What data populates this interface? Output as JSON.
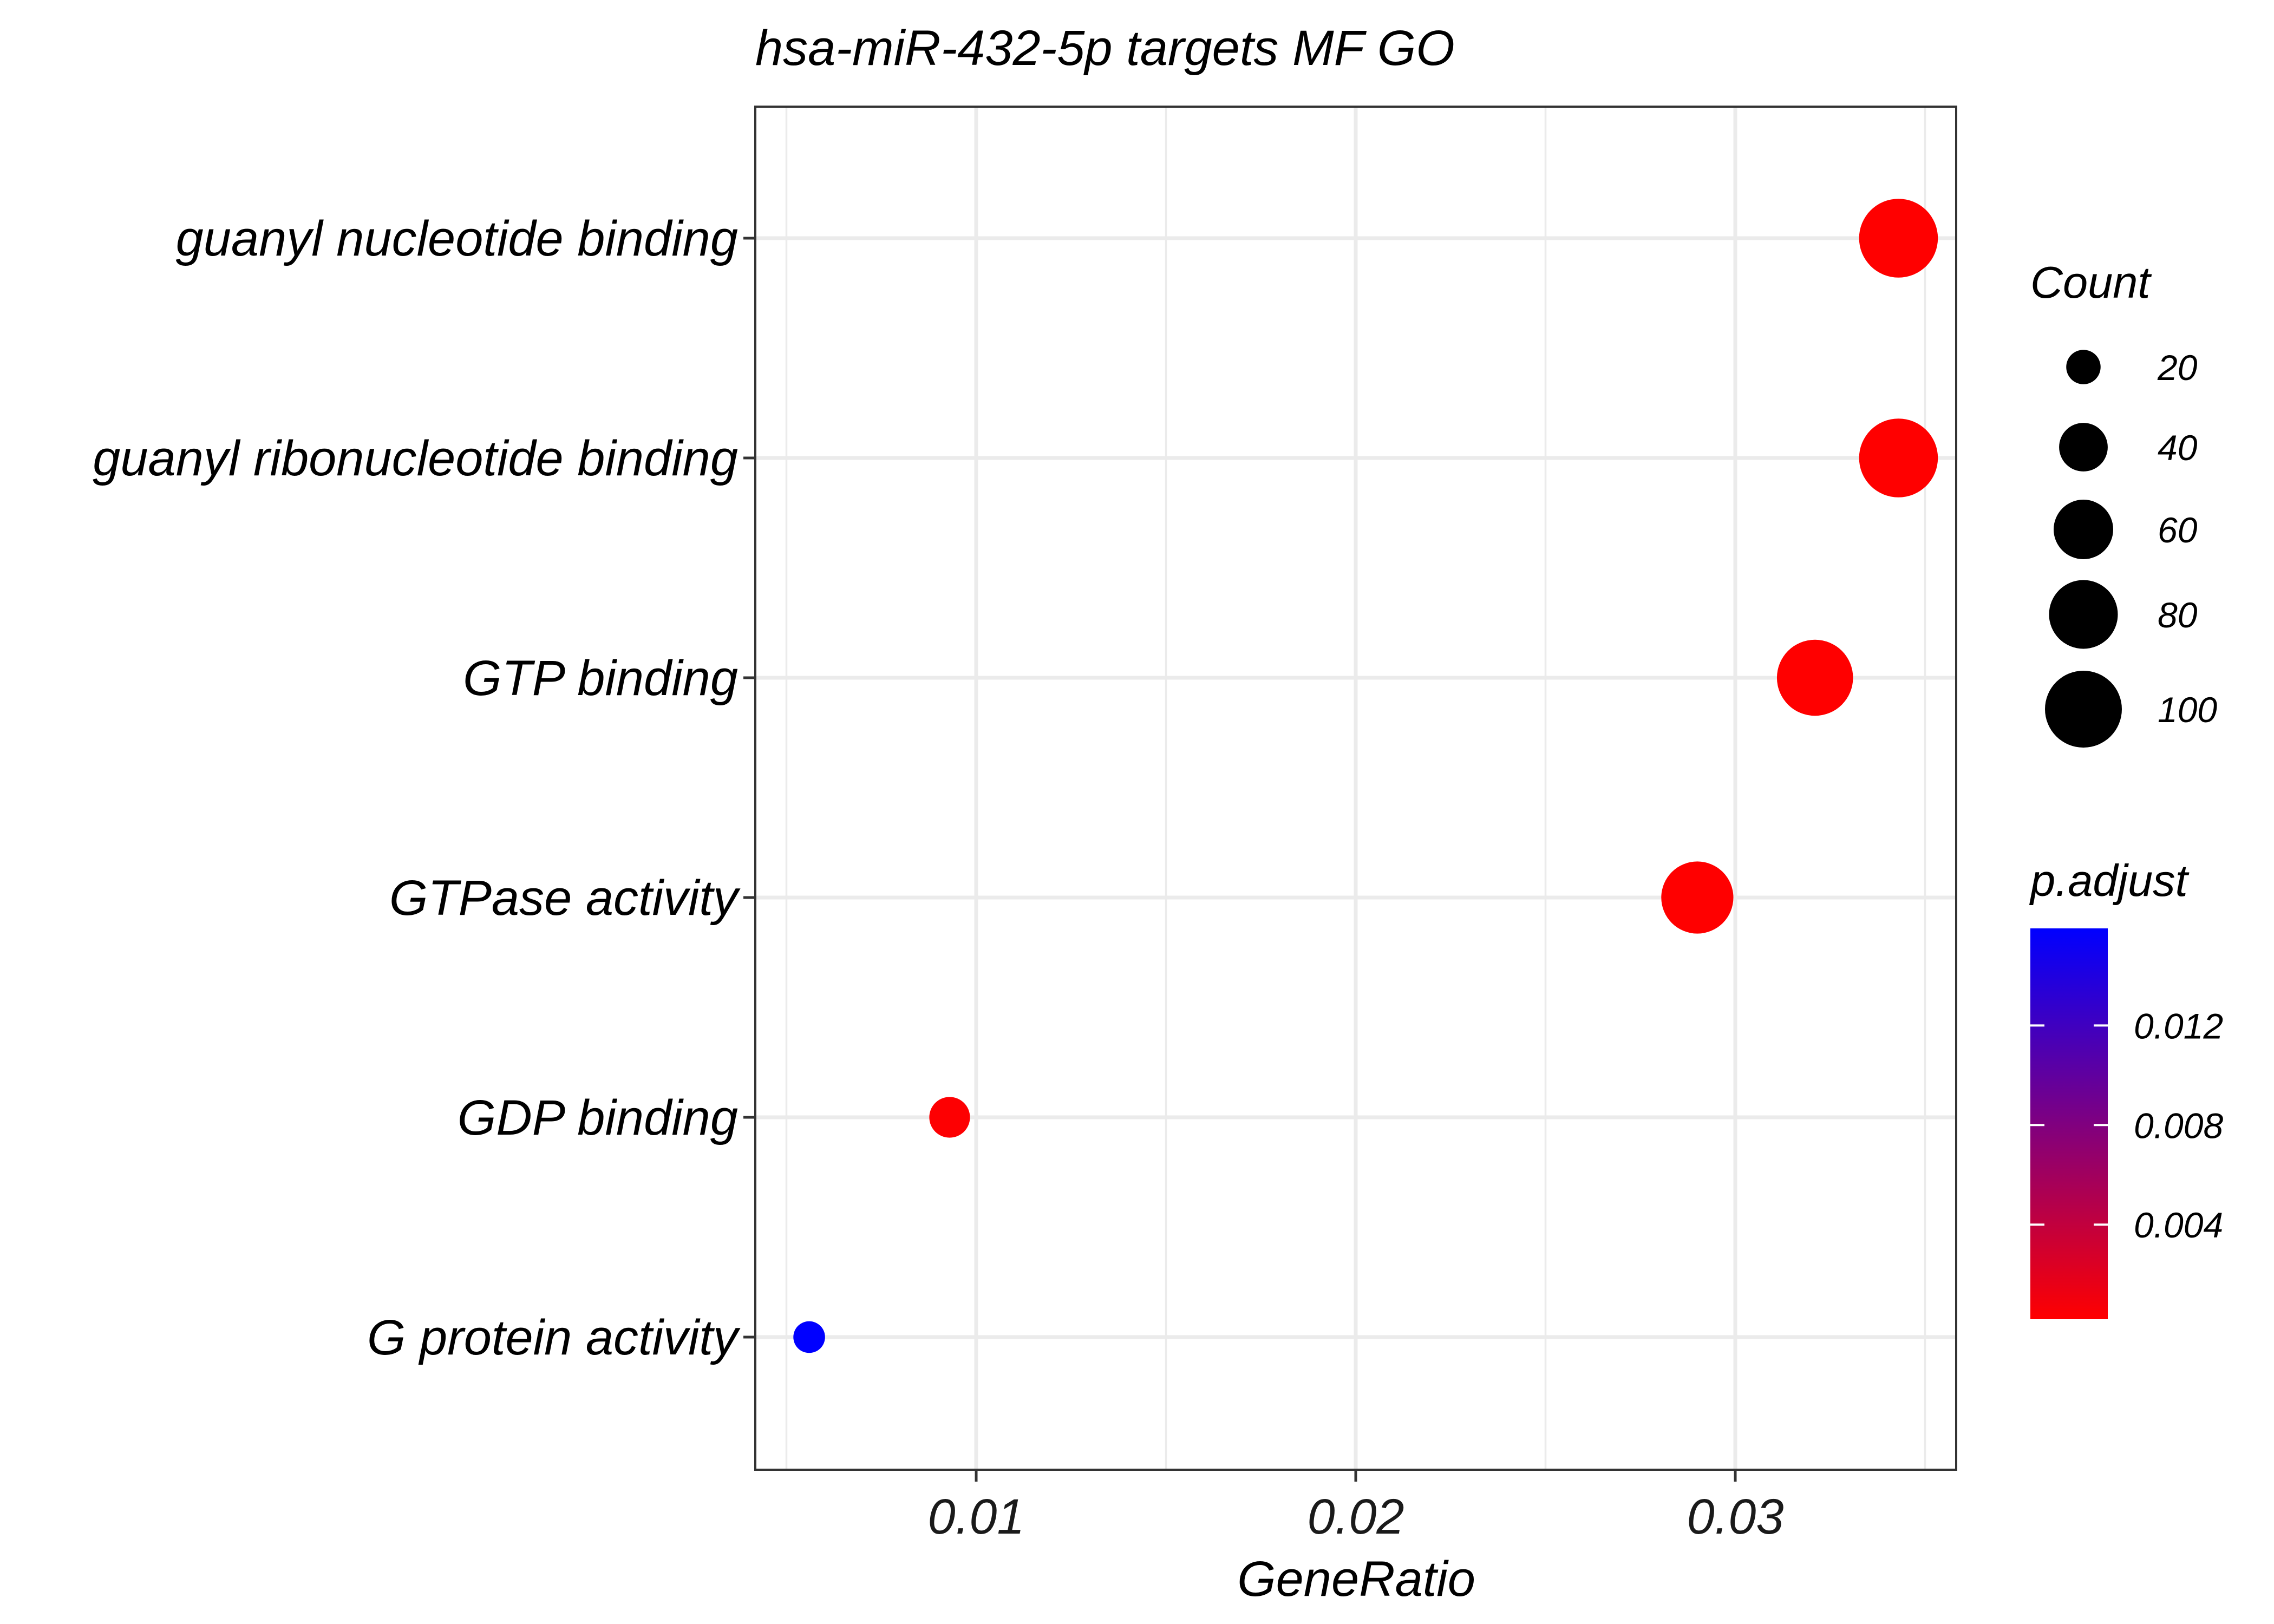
{
  "chart_data": {
    "type": "scatter",
    "title": "hsa-miR-432-5p targets MF GO",
    "xlabel": "GeneRatio",
    "ylabel": "",
    "xlim": [
      0.0045,
      0.036
    ],
    "xticks": [
      0.01,
      0.02,
      0.03
    ],
    "xtick_labels": [
      "0.01",
      "0.02",
      "0.03"
    ],
    "categories": [
      "guanyl nucleotide binding",
      "guanyl ribonucleotide binding",
      "GTP binding",
      "GTPase activity",
      "GDP binding",
      "G protein activity"
    ],
    "points": [
      {
        "term": "guanyl nucleotide binding",
        "gene_ratio": 0.0343,
        "count": 105,
        "p_adjust": 0.0002
      },
      {
        "term": "guanyl ribonucleotide binding",
        "gene_ratio": 0.0343,
        "count": 105,
        "p_adjust": 0.0002
      },
      {
        "term": "GTP binding",
        "gene_ratio": 0.0321,
        "count": 98,
        "p_adjust": 0.0002
      },
      {
        "term": "GTPase activity",
        "gene_ratio": 0.029,
        "count": 88,
        "p_adjust": 0.0002
      },
      {
        "term": "GDP binding",
        "gene_ratio": 0.0093,
        "count": 28,
        "p_adjust": 0.0003
      },
      {
        "term": "G protein activity",
        "gene_ratio": 0.0056,
        "count": 17,
        "p_adjust": 0.0159
      }
    ],
    "size_legend": {
      "title": "Count",
      "values": [
        20,
        40,
        60,
        80,
        100
      ],
      "labels": [
        "20",
        "40",
        "60",
        "80",
        "100"
      ]
    },
    "color_legend": {
      "title": "p.adjust",
      "range": [
        0.0002,
        0.0159
      ],
      "ticks": [
        0.004,
        0.008,
        0.012
      ],
      "labels": [
        "0.004",
        "0.008",
        "0.012"
      ],
      "low_color": "#ff0000",
      "high_color": "#0000ff"
    },
    "grid": true,
    "legend_position": "right"
  }
}
